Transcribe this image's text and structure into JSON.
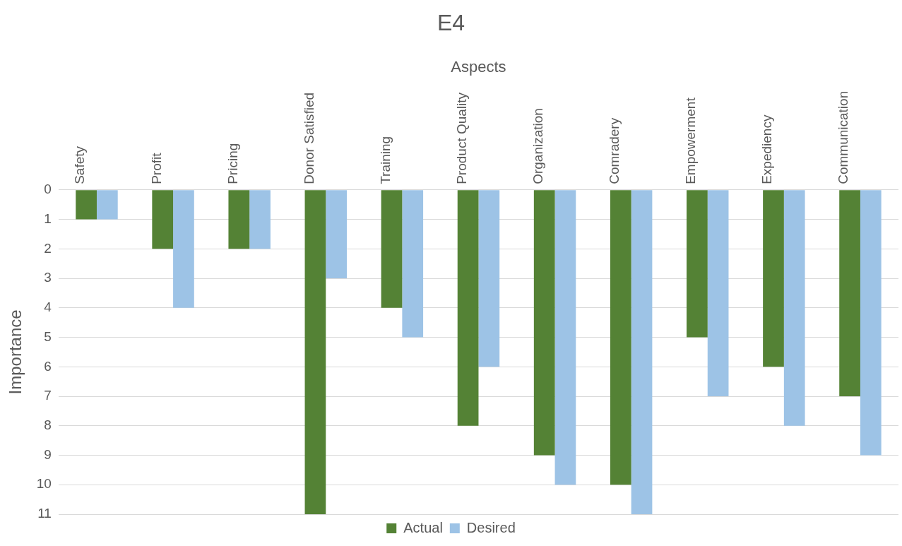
{
  "chart_data": {
    "type": "bar",
    "title": "E4",
    "xlabel": "Aspects",
    "ylabel": "Importance",
    "categories": [
      "Safety",
      "Profit",
      "Pricing",
      "Donor Satisfied",
      "Training",
      "Product Quality",
      "Organization",
      "Comradery",
      "Empowerment",
      "Expediency",
      "Communication"
    ],
    "series": [
      {
        "name": "Actual",
        "color": "#548235",
        "values": [
          1,
          2,
          2,
          11,
          4,
          8,
          9,
          10,
          5,
          6,
          7
        ]
      },
      {
        "name": "Desired",
        "color": "#9dc3e6",
        "values": [
          1,
          4,
          2,
          3,
          5,
          6,
          10,
          11,
          7,
          8,
          9
        ]
      }
    ],
    "ylim": [
      11,
      0
    ],
    "yticks": [
      0,
      1,
      2,
      3,
      4,
      5,
      6,
      7,
      8,
      9,
      10,
      11
    ],
    "grid": "y",
    "legend": "bottom"
  }
}
